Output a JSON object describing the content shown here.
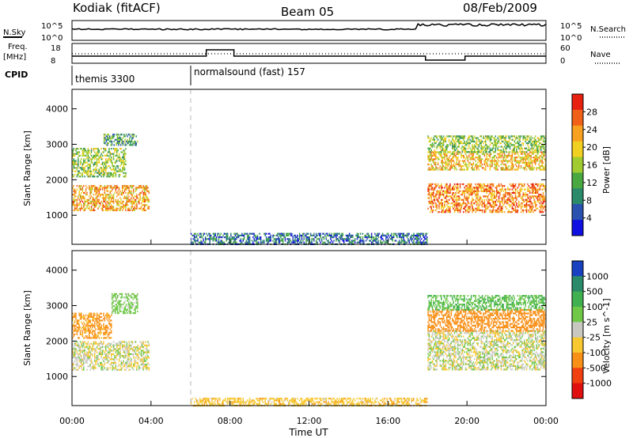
{
  "header": {
    "station": "Kodiak (fitACF)",
    "beam": "Beam 05",
    "date": "08/Feb/2009"
  },
  "status_panels": {
    "nsky_label": "N.Sky",
    "nsearch_label": "N.Search",
    "freq_label_1": "Freq.",
    "freq_label_2": "[MHz]",
    "nave_label": "Nave",
    "cpid_label": "CPID",
    "noise_ticks": [
      "10^5",
      "10^0"
    ],
    "noise_right_ticks": [
      "10^5",
      "10^0"
    ],
    "freq_ticks": [
      "18",
      "8"
    ],
    "nave_ticks": [
      "60",
      "0"
    ],
    "programs": [
      {
        "name": "themis 3300",
        "start": "00:00"
      },
      {
        "name": "normalsound (fast) 157",
        "start": "06:00"
      }
    ]
  },
  "x_axis": {
    "label": "Time UT",
    "ticks": [
      "00:00",
      "04:00",
      "08:00",
      "12:00",
      "16:00",
      "20:00",
      "00:00"
    ]
  },
  "chart_data": [
    {
      "type": "heatmap",
      "panel": "power",
      "ylabel": "Slant Range [km]",
      "yticks": [
        1000,
        2000,
        3000,
        4000
      ],
      "ylim": [
        180,
        4550
      ],
      "xlim_hours": [
        0,
        24
      ],
      "colorbar": {
        "label": "Power [dB]",
        "ticks": [
          "4",
          "8",
          "12",
          "16",
          "20",
          "24",
          "28"
        ],
        "range": [
          0,
          30
        ],
        "colors": [
          "#1010e0",
          "#2a50b0",
          "#2a8a6a",
          "#4aa840",
          "#a0cc30",
          "#f0d020",
          "#f8a020",
          "#f06018",
          "#e82010"
        ]
      },
      "regions": [
        {
          "t0": 0.0,
          "t1": 3.9,
          "r0": 1150,
          "r1": 1850,
          "level": 22
        },
        {
          "t0": 0.0,
          "t1": 2.7,
          "r0": 2100,
          "r1": 2900,
          "level": 14
        },
        {
          "t0": 1.6,
          "t1": 3.3,
          "r0": 3000,
          "r1": 3300,
          "level": 10
        },
        {
          "t0": 6.0,
          "t1": 18.0,
          "r0": 200,
          "r1": 500,
          "level": 6
        },
        {
          "t0": 18.0,
          "t1": 24.0,
          "r0": 1100,
          "r1": 1900,
          "level": 24
        },
        {
          "t0": 18.0,
          "t1": 24.0,
          "r0": 2300,
          "r1": 2800,
          "level": 20
        },
        {
          "t0": 18.0,
          "t1": 24.0,
          "r0": 2800,
          "r1": 3250,
          "level": 14
        }
      ]
    },
    {
      "type": "heatmap",
      "panel": "velocity",
      "ylabel": "Slant Range [km]",
      "yticks": [
        1000,
        2000,
        3000,
        4000
      ],
      "ylim": [
        180,
        4550
      ],
      "xlim_hours": [
        0,
        24
      ],
      "colorbar": {
        "label": "Velocity [m s^-1]",
        "ticks": [
          "1000",
          "500",
          "100",
          "25",
          "-25",
          "-100",
          "-500",
          "-1000"
        ],
        "colors": [
          "#1840c0",
          "#2a8a6a",
          "#40b050",
          "#70c848",
          "#c8c8c0",
          "#f8c830",
          "#f89018",
          "#f04010",
          "#e01010"
        ]
      },
      "regions": [
        {
          "t0": 0.0,
          "t1": 3.9,
          "r0": 1200,
          "r1": 2000,
          "level": -5
        },
        {
          "t0": 0.0,
          "t1": 2.0,
          "r0": 2100,
          "r1": 2800,
          "level": -80
        },
        {
          "t0": 2.0,
          "t1": 3.3,
          "r0": 2800,
          "r1": 3350,
          "level": 30
        },
        {
          "t0": 6.0,
          "t1": 18.0,
          "r0": 200,
          "r1": 400,
          "level": -40
        },
        {
          "t0": 18.0,
          "t1": 24.0,
          "r0": 1200,
          "r1": 2300,
          "level": 0
        },
        {
          "t0": 18.0,
          "t1": 24.0,
          "r0": 2300,
          "r1": 2900,
          "level": -200
        },
        {
          "t0": 18.0,
          "t1": 24.0,
          "r0": 2900,
          "r1": 3300,
          "level": 60
        }
      ]
    }
  ]
}
